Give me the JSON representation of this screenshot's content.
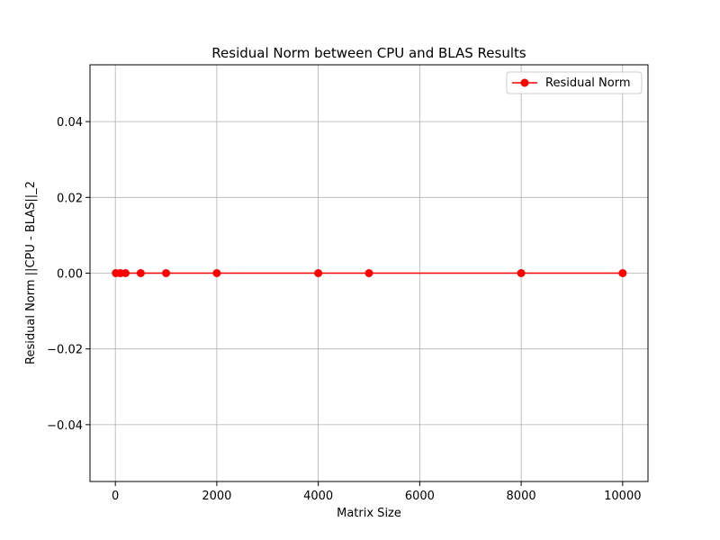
{
  "chart_data": {
    "type": "line",
    "title": "Residual Norm between CPU and BLAS Results",
    "xlabel": "Matrix Size",
    "ylabel": "Residual Norm ||CPU - BLAS||_2",
    "xlim": [
      -500,
      10500
    ],
    "ylim": [
      -0.055,
      0.055
    ],
    "x_ticks": [
      0,
      2000,
      4000,
      6000,
      8000,
      10000
    ],
    "x_tick_labels": [
      "0",
      "2000",
      "4000",
      "6000",
      "8000",
      "10000"
    ],
    "y_ticks": [
      -0.04,
      -0.02,
      0.0,
      0.02,
      0.04
    ],
    "y_tick_labels": [
      "−0.04",
      "−0.02",
      "0.00",
      "0.02",
      "0.04"
    ],
    "grid": true,
    "legend_position": "top-right",
    "series": [
      {
        "name": "Residual Norm",
        "color": "#ff0000",
        "marker": "circle",
        "x": [
          10,
          100,
          200,
          500,
          1000,
          2000,
          4000,
          5000,
          8000,
          10000
        ],
        "y": [
          0,
          0,
          0,
          0,
          0,
          0,
          0,
          0,
          0,
          0
        ]
      }
    ]
  }
}
